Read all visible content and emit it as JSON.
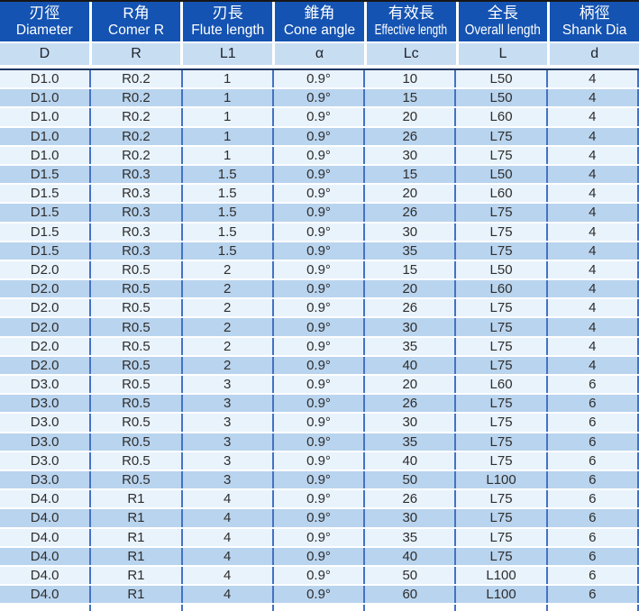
{
  "colors": {
    "header_bg": "#1453b2",
    "header_text": "#ffffff",
    "subheader_bg": "#c7ddf2",
    "subheader_text": "#20242c",
    "row_light": "#e9f3fc",
    "row_dark": "#b9d4ee",
    "body_text": "#2e2e2e",
    "divider": "#4472c4",
    "navy_line": "#1f3864",
    "top_border": "#161616"
  },
  "table": {
    "columns": [
      {
        "key": "diameter",
        "zh": "刃徑",
        "en": "Diameter",
        "symbol": "D"
      },
      {
        "key": "corner-r",
        "zh": "R角",
        "en": "Comer R",
        "symbol": "R"
      },
      {
        "key": "flute-length",
        "zh": "刃長",
        "en": "Flute length",
        "symbol": "L1"
      },
      {
        "key": "cone-angle",
        "zh": "錐角",
        "en": "Cone angle",
        "symbol": "α"
      },
      {
        "key": "effective-length",
        "zh": "有效長",
        "en": "Effective length",
        "symbol": "Lc"
      },
      {
        "key": "overall-length",
        "zh": "全長",
        "en": "Overall length",
        "symbol": "L"
      },
      {
        "key": "shank-dia",
        "zh": "柄徑",
        "en": "Shank Dia",
        "symbol": "d"
      }
    ],
    "rows": [
      [
        "D1.0",
        "R0.2",
        "1",
        "0.9°",
        "10",
        "L50",
        "4"
      ],
      [
        "D1.0",
        "R0.2",
        "1",
        "0.9°",
        "15",
        "L50",
        "4"
      ],
      [
        "D1.0",
        "R0.2",
        "1",
        "0.9°",
        "20",
        "L60",
        "4"
      ],
      [
        "D1.0",
        "R0.2",
        "1",
        "0.9°",
        "26",
        "L75",
        "4"
      ],
      [
        "D1.0",
        "R0.2",
        "1",
        "0.9°",
        "30",
        "L75",
        "4"
      ],
      [
        "D1.5",
        "R0.3",
        "1.5",
        "0.9°",
        "15",
        "L50",
        "4"
      ],
      [
        "D1.5",
        "R0.3",
        "1.5",
        "0.9°",
        "20",
        "L60",
        "4"
      ],
      [
        "D1.5",
        "R0.3",
        "1.5",
        "0.9°",
        "26",
        "L75",
        "4"
      ],
      [
        "D1.5",
        "R0.3",
        "1.5",
        "0.9°",
        "30",
        "L75",
        "4"
      ],
      [
        "D1.5",
        "R0.3",
        "1.5",
        "0.9°",
        "35",
        "L75",
        "4"
      ],
      [
        "D2.0",
        "R0.5",
        "2",
        "0.9°",
        "15",
        "L50",
        "4"
      ],
      [
        "D2.0",
        "R0.5",
        "2",
        "0.9°",
        "20",
        "L60",
        "4"
      ],
      [
        "D2.0",
        "R0.5",
        "2",
        "0.9°",
        "26",
        "L75",
        "4"
      ],
      [
        "D2.0",
        "R0.5",
        "2",
        "0.9°",
        "30",
        "L75",
        "4"
      ],
      [
        "D2.0",
        "R0.5",
        "2",
        "0.9°",
        "35",
        "L75",
        "4"
      ],
      [
        "D2.0",
        "R0.5",
        "2",
        "0.9°",
        "40",
        "L75",
        "4"
      ],
      [
        "D3.0",
        "R0.5",
        "3",
        "0.9°",
        "20",
        "L60",
        "6"
      ],
      [
        "D3.0",
        "R0.5",
        "3",
        "0.9°",
        "26",
        "L75",
        "6"
      ],
      [
        "D3.0",
        "R0.5",
        "3",
        "0.9°",
        "30",
        "L75",
        "6"
      ],
      [
        "D3.0",
        "R0.5",
        "3",
        "0.9°",
        "35",
        "L75",
        "6"
      ],
      [
        "D3.0",
        "R0.5",
        "3",
        "0.9°",
        "40",
        "L75",
        "6"
      ],
      [
        "D3.0",
        "R0.5",
        "3",
        "0.9°",
        "50",
        "L100",
        "6"
      ],
      [
        "D4.0",
        "R1",
        "4",
        "0.9°",
        "26",
        "L75",
        "6"
      ],
      [
        "D4.0",
        "R1",
        "4",
        "0.9°",
        "30",
        "L75",
        "6"
      ],
      [
        "D4.0",
        "R1",
        "4",
        "0.9°",
        "35",
        "L75",
        "6"
      ],
      [
        "D4.0",
        "R1",
        "4",
        "0.9°",
        "40",
        "L75",
        "6"
      ],
      [
        "D4.0",
        "R1",
        "4",
        "0.9°",
        "50",
        "L100",
        "6"
      ],
      [
        "D4.0",
        "R1",
        "4",
        "0.9°",
        "60",
        "L100",
        "6"
      ]
    ]
  }
}
